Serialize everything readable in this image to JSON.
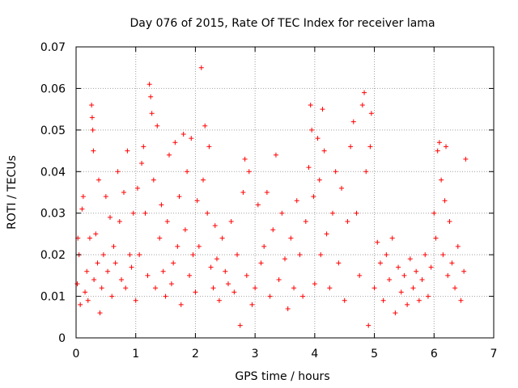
{
  "chart_data": {
    "type": "scatter",
    "title": "Day 076 of 2015, Rate Of TEC Index for receiver lama",
    "xlabel": "GPS time / hours",
    "ylabel": "ROTI / TECUs",
    "xlim": [
      0,
      7
    ],
    "ylim": [
      0,
      0.07
    ],
    "x_ticks": [
      0,
      1,
      2,
      3,
      4,
      5,
      6,
      7
    ],
    "x_tick_labels": [
      "0",
      "1",
      "2",
      "3",
      "4",
      "5",
      "6",
      "7"
    ],
    "y_ticks": [
      0,
      0.01,
      0.02,
      0.03,
      0.04,
      0.05,
      0.06,
      0.07
    ],
    "y_tick_labels": [
      "0",
      "0.01",
      "0.02",
      "0.03",
      "0.04",
      "0.05",
      "0.06",
      "0.07"
    ],
    "grid": true,
    "marker": "+",
    "color": "#ff0000",
    "x_range_of_data": [
      0,
      6.55
    ],
    "data_gap": [
      6.55,
      7
    ],
    "series": [
      {
        "name": "ROTI",
        "points": [
          [
            0.02,
            0.013
          ],
          [
            0.03,
            0.024
          ],
          [
            0.05,
            0.02
          ],
          [
            0.07,
            0.008
          ],
          [
            0.1,
            0.031
          ],
          [
            0.12,
            0.034
          ],
          [
            0.15,
            0.011
          ],
          [
            0.18,
            0.016
          ],
          [
            0.2,
            0.009
          ],
          [
            0.23,
            0.024
          ],
          [
            0.26,
            0.056
          ],
          [
            0.27,
            0.053
          ],
          [
            0.28,
            0.05
          ],
          [
            0.29,
            0.045
          ],
          [
            0.3,
            0.014
          ],
          [
            0.33,
            0.025
          ],
          [
            0.36,
            0.018
          ],
          [
            0.38,
            0.038
          ],
          [
            0.4,
            0.006
          ],
          [
            0.43,
            0.012
          ],
          [
            0.46,
            0.02
          ],
          [
            0.5,
            0.034
          ],
          [
            0.53,
            0.016
          ],
          [
            0.57,
            0.029
          ],
          [
            0.6,
            0.01
          ],
          [
            0.63,
            0.022
          ],
          [
            0.66,
            0.018
          ],
          [
            0.7,
            0.04
          ],
          [
            0.73,
            0.028
          ],
          [
            0.76,
            0.014
          ],
          [
            0.8,
            0.035
          ],
          [
            0.83,
            0.012
          ],
          [
            0.86,
            0.045
          ],
          [
            0.9,
            0.02
          ],
          [
            0.93,
            0.017
          ],
          [
            0.96,
            0.03
          ],
          [
            1.0,
            0.009
          ],
          [
            1.03,
            0.036
          ],
          [
            1.06,
            0.02
          ],
          [
            1.1,
            0.042
          ],
          [
            1.13,
            0.046
          ],
          [
            1.16,
            0.03
          ],
          [
            1.2,
            0.015
          ],
          [
            1.23,
            0.061
          ],
          [
            1.25,
            0.058
          ],
          [
            1.27,
            0.054
          ],
          [
            1.3,
            0.038
          ],
          [
            1.33,
            0.012
          ],
          [
            1.36,
            0.051
          ],
          [
            1.4,
            0.024
          ],
          [
            1.43,
            0.032
          ],
          [
            1.46,
            0.016
          ],
          [
            1.5,
            0.01
          ],
          [
            1.53,
            0.028
          ],
          [
            1.56,
            0.044
          ],
          [
            1.6,
            0.013
          ],
          [
            1.63,
            0.018
          ],
          [
            1.66,
            0.047
          ],
          [
            1.7,
            0.022
          ],
          [
            1.73,
            0.034
          ],
          [
            1.76,
            0.008
          ],
          [
            1.8,
            0.049
          ],
          [
            1.83,
            0.026
          ],
          [
            1.86,
            0.04
          ],
          [
            1.9,
            0.015
          ],
          [
            1.93,
            0.048
          ],
          [
            1.96,
            0.02
          ],
          [
            2.0,
            0.011
          ],
          [
            2.03,
            0.033
          ],
          [
            2.06,
            0.022
          ],
          [
            2.1,
            0.065
          ],
          [
            2.13,
            0.038
          ],
          [
            2.16,
            0.051
          ],
          [
            2.2,
            0.03
          ],
          [
            2.23,
            0.046
          ],
          [
            2.26,
            0.017
          ],
          [
            2.3,
            0.012
          ],
          [
            2.33,
            0.027
          ],
          [
            2.36,
            0.019
          ],
          [
            2.4,
            0.009
          ],
          [
            2.45,
            0.024
          ],
          [
            2.5,
            0.016
          ],
          [
            2.55,
            0.013
          ],
          [
            2.6,
            0.028
          ],
          [
            2.65,
            0.011
          ],
          [
            2.7,
            0.02
          ],
          [
            2.75,
            0.003
          ],
          [
            2.8,
            0.035
          ],
          [
            2.83,
            0.043
          ],
          [
            2.86,
            0.015
          ],
          [
            2.9,
            0.04
          ],
          [
            2.95,
            0.008
          ],
          [
            3.0,
            0.012
          ],
          [
            3.05,
            0.032
          ],
          [
            3.1,
            0.018
          ],
          [
            3.15,
            0.022
          ],
          [
            3.2,
            0.035
          ],
          [
            3.25,
            0.01
          ],
          [
            3.3,
            0.026
          ],
          [
            3.35,
            0.044
          ],
          [
            3.4,
            0.014
          ],
          [
            3.45,
            0.03
          ],
          [
            3.5,
            0.019
          ],
          [
            3.55,
            0.007
          ],
          [
            3.6,
            0.024
          ],
          [
            3.65,
            0.012
          ],
          [
            3.7,
            0.033
          ],
          [
            3.75,
            0.02
          ],
          [
            3.8,
            0.01
          ],
          [
            3.85,
            0.028
          ],
          [
            3.9,
            0.041
          ],
          [
            3.93,
            0.056
          ],
          [
            3.95,
            0.05
          ],
          [
            3.98,
            0.034
          ],
          [
            4.0,
            0.013
          ],
          [
            4.05,
            0.048
          ],
          [
            4.08,
            0.038
          ],
          [
            4.1,
            0.02
          ],
          [
            4.13,
            0.055
          ],
          [
            4.16,
            0.045
          ],
          [
            4.2,
            0.025
          ],
          [
            4.25,
            0.012
          ],
          [
            4.3,
            0.03
          ],
          [
            4.35,
            0.04
          ],
          [
            4.4,
            0.018
          ],
          [
            4.45,
            0.036
          ],
          [
            4.5,
            0.009
          ],
          [
            4.55,
            0.028
          ],
          [
            4.6,
            0.046
          ],
          [
            4.65,
            0.052
          ],
          [
            4.7,
            0.03
          ],
          [
            4.75,
            0.015
          ],
          [
            4.8,
            0.056
          ],
          [
            4.83,
            0.059
          ],
          [
            4.86,
            0.04
          ],
          [
            4.9,
            0.003
          ],
          [
            4.93,
            0.046
          ],
          [
            4.95,
            0.054
          ],
          [
            5.0,
            0.012
          ],
          [
            5.05,
            0.023
          ],
          [
            5.1,
            0.018
          ],
          [
            5.15,
            0.009
          ],
          [
            5.2,
            0.02
          ],
          [
            5.25,
            0.014
          ],
          [
            5.3,
            0.024
          ],
          [
            5.35,
            0.006
          ],
          [
            5.4,
            0.017
          ],
          [
            5.45,
            0.011
          ],
          [
            5.5,
            0.015
          ],
          [
            5.55,
            0.008
          ],
          [
            5.6,
            0.019
          ],
          [
            5.65,
            0.012
          ],
          [
            5.7,
            0.016
          ],
          [
            5.75,
            0.009
          ],
          [
            5.8,
            0.014
          ],
          [
            5.85,
            0.02
          ],
          [
            5.9,
            0.01
          ],
          [
            5.95,
            0.017
          ],
          [
            6.0,
            0.03
          ],
          [
            6.03,
            0.024
          ],
          [
            6.06,
            0.045
          ],
          [
            6.09,
            0.047
          ],
          [
            6.12,
            0.038
          ],
          [
            6.15,
            0.02
          ],
          [
            6.18,
            0.033
          ],
          [
            6.2,
            0.046
          ],
          [
            6.23,
            0.015
          ],
          [
            6.26,
            0.028
          ],
          [
            6.3,
            0.018
          ],
          [
            6.35,
            0.012
          ],
          [
            6.4,
            0.022
          ],
          [
            6.45,
            0.009
          ],
          [
            6.5,
            0.016
          ],
          [
            6.53,
            0.043
          ]
        ]
      }
    ]
  }
}
